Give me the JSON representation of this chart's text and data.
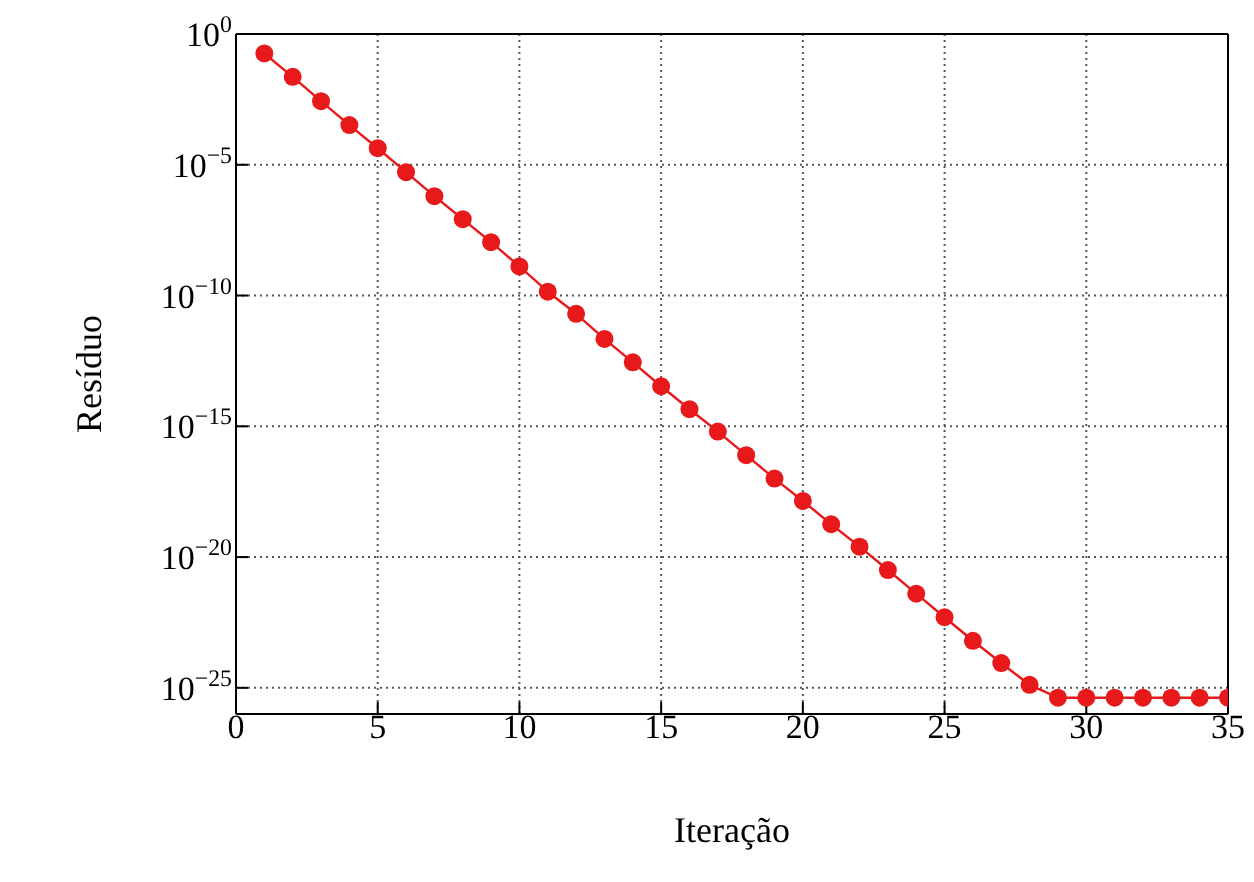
{
  "chart_data": {
    "type": "line",
    "xlabel": "Iteração",
    "ylabel": "Resíduo",
    "x": [
      1,
      2,
      3,
      4,
      5,
      6,
      7,
      8,
      9,
      10,
      11,
      12,
      13,
      14,
      15,
      16,
      17,
      18,
      19,
      20,
      21,
      22,
      23,
      24,
      25,
      26,
      27,
      28,
      29,
      30,
      31,
      32,
      33,
      34,
      35
    ],
    "series": [
      {
        "color": "#e8191b",
        "values": [
          0.18,
          0.023,
          0.0027,
          0.00033,
          4.3e-05,
          5.2e-06,
          6.3e-07,
          8.3e-08,
          1.1e-08,
          1.3e-09,
          1.4e-10,
          2e-11,
          2.2e-12,
          2.8e-13,
          3.4e-14,
          4.5e-15,
          6.3e-16,
          7.9e-17,
          1e-17,
          1.4e-18,
          1.8e-19,
          2.5e-20,
          3.2e-21,
          4e-22,
          5e-23,
          6.3e-24,
          8.9e-25,
          1.3e-25,
          4.2e-26,
          4.2e-26,
          4.2e-26,
          4.2e-26,
          4.2e-26,
          4.2e-26,
          4.2e-26
        ]
      }
    ],
    "xlim": [
      0,
      35
    ],
    "xticks": [
      0,
      5,
      10,
      15,
      20,
      25,
      30,
      35
    ],
    "ylim": [
      1e-26,
      1
    ],
    "yticks": [
      {
        "value": 1,
        "label": "10$^{0}$"
      },
      {
        "value": 1e-05,
        "label": "10$^{−5}$"
      },
      {
        "value": 1e-10,
        "label": "10$^{−10}$"
      },
      {
        "value": 1e-15,
        "label": "10$^{−15}$"
      },
      {
        "value": 1e-20,
        "label": "10$^{−20}$"
      },
      {
        "value": 1e-25,
        "label": "10$^{−25}$"
      }
    ],
    "log": "y",
    "grid": true,
    "legend": false,
    "marker": "circle",
    "line_style": "solid"
  }
}
